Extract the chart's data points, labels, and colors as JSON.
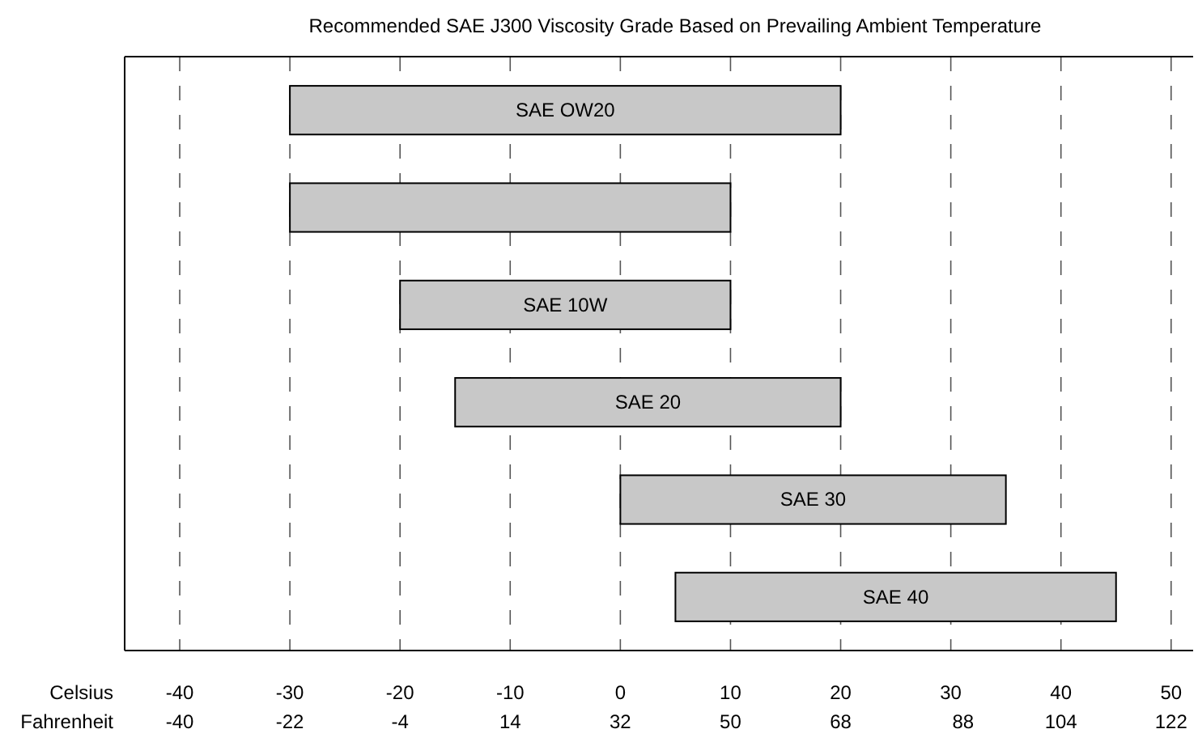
{
  "chart_data": {
    "type": "bar",
    "orientation": "horizontal",
    "title": "Recommended SAE J300 Viscosity Grade Based on Prevailing Ambient Temperature",
    "categories": [
      "SAE OW20",
      null,
      "SAE 10W",
      "SAE 20",
      "SAE 30",
      "SAE 40"
    ],
    "base": [
      -30,
      -30,
      -20,
      -15,
      0,
      5
    ],
    "values": [
      50,
      40,
      30,
      35,
      35,
      40
    ],
    "color": "#c8c8c8",
    "xlim": [
      -45,
      52
    ],
    "xticks": [
      -40,
      -30,
      -20,
      -10,
      0,
      10,
      20,
      30,
      40,
      50
    ],
    "x2lim": [
      -49,
      125.6
    ],
    "x2ticks": [
      -40,
      -22,
      -4,
      14,
      32,
      50,
      68,
      88,
      104,
      122
    ],
    "xlabel": "Celsius",
    "x2label": "Fahrenheit",
    "grid": "x",
    "tick_labels": "x"
  }
}
